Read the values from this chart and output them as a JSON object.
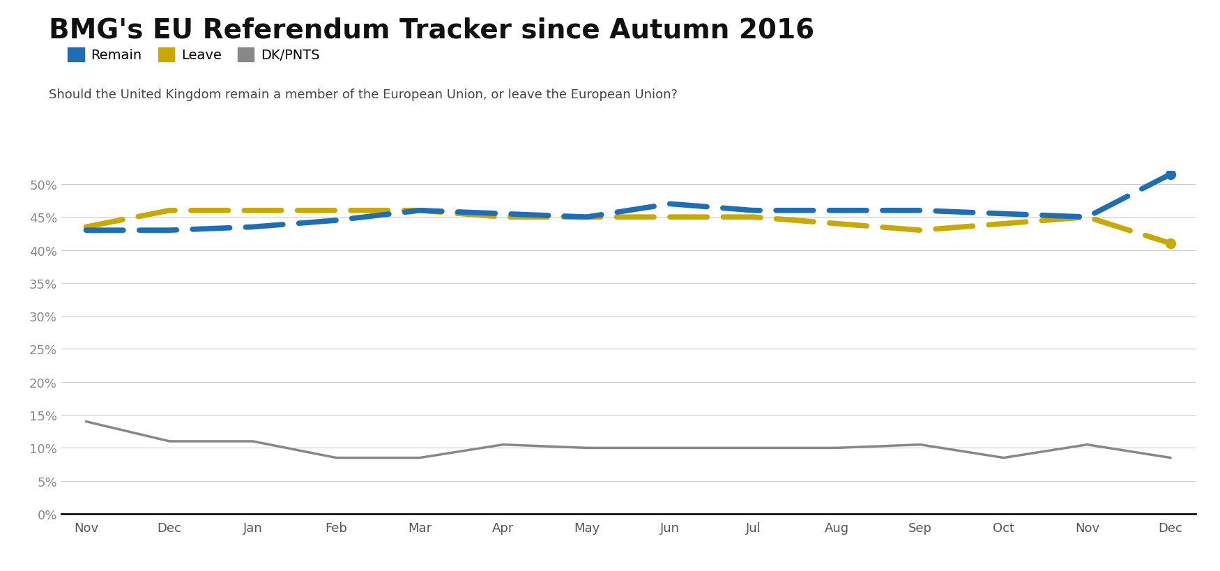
{
  "title": "BMG's EU Referendum Tracker since Autumn 2016",
  "subtitle": "Should the United Kingdom remain a member of the European Union, or leave the European Union?",
  "x_labels": [
    "Nov",
    "Dec",
    "Jan",
    "Feb",
    "Mar",
    "Apr",
    "May",
    "Jun",
    "Jul",
    "Aug",
    "Sep",
    "Oct",
    "Nov",
    "Dec"
  ],
  "remain": [
    43,
    43,
    43.5,
    44.5,
    46,
    45.5,
    45,
    47,
    46,
    46,
    46,
    45.5,
    45,
    51.5
  ],
  "leave": [
    43.5,
    46,
    46,
    46,
    46,
    45,
    45,
    45,
    45,
    44,
    43,
    44,
    45,
    41
  ],
  "dkpnts": [
    14,
    11,
    11,
    8.5,
    8.5,
    10.5,
    10,
    10,
    10,
    10,
    10.5,
    8.5,
    10.5,
    8.5
  ],
  "remain_color": "#1f6eb5",
  "leave_color": "#c9a800",
  "dkpnts_color": "#888888",
  "background_color": "#ffffff",
  "grid_color": "#cccccc",
  "title_fontsize": 28,
  "subtitle_fontsize": 13,
  "legend_fontsize": 14,
  "tick_fontsize": 13,
  "ylim": [
    0,
    52
  ],
  "yticks": [
    0,
    5,
    10,
    15,
    20,
    25,
    30,
    35,
    40,
    45,
    50
  ]
}
